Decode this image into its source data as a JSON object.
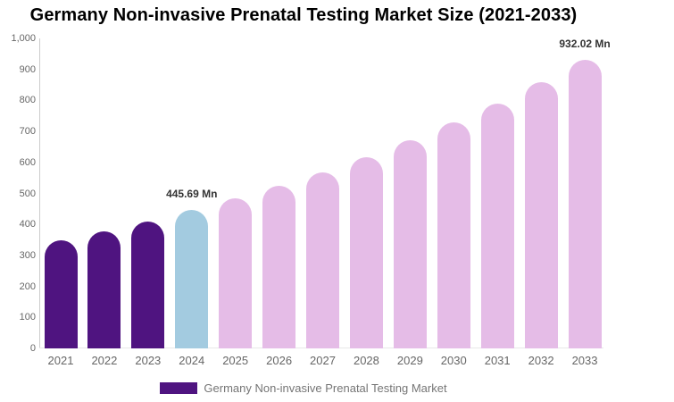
{
  "chart_data": {
    "type": "bar",
    "title": "Germany Non-invasive Prenatal Testing Market Size (2021-2033)",
    "unit": "Mn",
    "categories": [
      "2021",
      "2022",
      "2023",
      "2024",
      "2025",
      "2026",
      "2027",
      "2028",
      "2029",
      "2030",
      "2031",
      "2032",
      "2033"
    ],
    "values": [
      349,
      378,
      410,
      445.69,
      483,
      524,
      569,
      618,
      671,
      729,
      790,
      858,
      932.02
    ],
    "labeled_values": {
      "2024": 445.69,
      "2033": 932.02
    },
    "annotations": [
      {
        "category": "2024",
        "text": "445.69 Mn"
      },
      {
        "category": "2033",
        "text": "932.02 Mn"
      }
    ],
    "xlabel": "",
    "ylabel": "",
    "ylim": [
      0,
      1000
    ],
    "ytick_step": 100,
    "ytick_labels": [
      "0",
      "100",
      "200",
      "300",
      "400",
      "500",
      "600",
      "700",
      "800",
      "900",
      "1,000"
    ],
    "grid": false,
    "legend_position": "bottom",
    "legend": [
      "Germany Non-invasive Prenatal Testing Market"
    ],
    "bar_roles": [
      "historical",
      "historical",
      "historical",
      "current",
      "forecast",
      "forecast",
      "forecast",
      "forecast",
      "forecast",
      "forecast",
      "forecast",
      "forecast",
      "forecast"
    ],
    "palette": {
      "historical": "#4F1480",
      "current": "#A3CBE0",
      "forecast": "#E5BCE7"
    },
    "colors": {
      "background": "#FFFFFF",
      "title": "#000000",
      "axis_label": "#666666",
      "data_label": "#333333",
      "legend_text": "#757575",
      "axis_line": "#CCCCCC",
      "baseline": "#E8E8E8"
    }
  }
}
